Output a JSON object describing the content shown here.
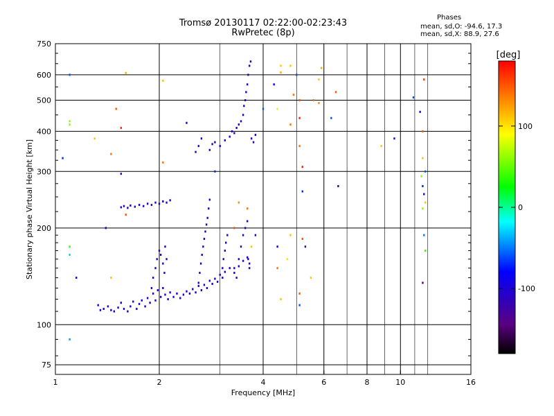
{
  "header": {
    "title_line1": "Tromsø 20130117 02:22:00-02:23:43",
    "title_line2": "RwPretec (8p)",
    "stats_title": "Phases",
    "stats_line1": "mean, sd,O: -94.6, 17.3",
    "stats_line2": "mean, sd,X:  88.9, 27.6"
  },
  "chart_data": {
    "type": "scatter",
    "title": "Tromsø 20130117 02:22:00-02:23:43",
    "subtitle": "RwPretec (8p)",
    "xlabel": "Frequency [MHz]",
    "ylabel": "Stationary phase Virtual Height [km]",
    "x_scale": "log",
    "y_scale": "log",
    "xlim": [
      1,
      16
    ],
    "ylim": [
      70,
      750
    ],
    "x_ticks": [
      1,
      2,
      4,
      6,
      8,
      10,
      16
    ],
    "x_tick_labels": [
      "1",
      "2",
      "4",
      "6",
      "8",
      "10",
      "16"
    ],
    "x_minor_ticks": [
      3,
      5,
      7,
      9,
      11,
      12
    ],
    "y_ticks": [
      75,
      100,
      200,
      300,
      400,
      500,
      600,
      750
    ],
    "y_tick_labels": [
      "75",
      "100",
      "200",
      "300",
      "400",
      "500",
      "600",
      "750"
    ],
    "grid": true,
    "colorbar": {
      "label": "[deg]",
      "range": [
        -180,
        180
      ],
      "ticks": [
        100,
        0,
        -100
      ],
      "tick_labels": [
        "100",
        "0",
        "-100"
      ],
      "colors": [
        "#000000",
        "#5a0080",
        "#0000ff",
        "#00ffff",
        "#00ff00",
        "#ffff00",
        "#ff0000"
      ]
    },
    "series": [
      {
        "trace": "lower_e_f1",
        "points": [
          [
            1.33,
            115
          ],
          [
            1.35,
            111
          ],
          [
            1.38,
            112
          ],
          [
            1.42,
            114
          ],
          [
            1.45,
            111
          ],
          [
            1.48,
            110
          ],
          [
            1.52,
            113
          ],
          [
            1.55,
            117
          ],
          [
            1.58,
            112
          ],
          [
            1.62,
            110
          ],
          [
            1.65,
            114
          ],
          [
            1.68,
            118
          ],
          [
            1.72,
            112
          ],
          [
            1.75,
            116
          ],
          [
            1.78,
            119
          ],
          [
            1.82,
            114
          ],
          [
            1.85,
            121
          ],
          [
            1.88,
            117
          ],
          [
            1.92,
            125
          ],
          [
            1.95,
            119
          ],
          [
            1.98,
            128
          ],
          [
            2.02,
            122
          ],
          [
            2.05,
            130
          ],
          [
            2.08,
            124
          ],
          [
            2.12,
            120
          ],
          [
            2.15,
            126
          ],
          [
            2.2,
            122
          ],
          [
            2.25,
            125
          ],
          [
            2.3,
            121
          ],
          [
            2.35,
            124
          ],
          [
            2.4,
            127
          ],
          [
            2.45,
            125
          ],
          [
            2.5,
            129
          ],
          [
            2.55,
            126
          ],
          [
            2.6,
            132
          ],
          [
            2.65,
            128
          ],
          [
            2.7,
            133
          ],
          [
            2.75,
            130
          ],
          [
            2.8,
            137
          ],
          [
            2.85,
            134
          ],
          [
            2.9,
            139
          ],
          [
            2.95,
            136
          ],
          [
            3.0,
            143
          ],
          [
            3.05,
            140
          ],
          [
            3.1,
            146
          ],
          [
            3.2,
            150
          ],
          [
            3.3,
            145
          ],
          [
            3.4,
            152
          ],
          [
            3.5,
            158
          ],
          [
            3.6,
            162
          ],
          [
            3.65,
            155
          ]
        ],
        "phase": -100
      },
      {
        "trace": "f1_verticals",
        "points": [
          [
            1.9,
            130
          ],
          [
            1.92,
            140
          ],
          [
            1.95,
            150
          ],
          [
            1.97,
            160
          ],
          [
            2.0,
            170
          ],
          [
            2.02,
            165
          ],
          [
            2.05,
            155
          ],
          [
            2.07,
            145
          ],
          [
            2.08,
            175
          ],
          [
            2.1,
            160
          ],
          [
            2.6,
            135
          ],
          [
            2.62,
            145
          ],
          [
            2.64,
            155
          ],
          [
            2.66,
            165
          ],
          [
            2.68,
            175
          ],
          [
            2.7,
            185
          ],
          [
            2.72,
            195
          ],
          [
            2.74,
            205
          ],
          [
            2.76,
            215
          ],
          [
            2.78,
            230
          ],
          [
            2.8,
            245
          ],
          [
            3.05,
            150
          ],
          [
            3.07,
            160
          ],
          [
            3.1,
            170
          ],
          [
            3.12,
            180
          ],
          [
            3.15,
            190
          ],
          [
            3.3,
            150
          ],
          [
            3.35,
            140
          ],
          [
            3.4,
            160
          ],
          [
            3.45,
            175
          ],
          [
            3.5,
            190
          ],
          [
            3.55,
            200
          ],
          [
            3.6,
            210
          ],
          [
            3.62,
            160
          ],
          [
            3.65,
            150
          ]
        ],
        "phase": -110
      },
      {
        "trace": "sporadic_layer_230",
        "points": [
          [
            1.55,
            232
          ],
          [
            1.58,
            234
          ],
          [
            1.62,
            231
          ],
          [
            1.65,
            235
          ],
          [
            1.7,
            233
          ],
          [
            1.75,
            236
          ],
          [
            1.8,
            234
          ],
          [
            1.85,
            238
          ],
          [
            1.9,
            236
          ],
          [
            1.95,
            240
          ],
          [
            2.0,
            238
          ],
          [
            2.05,
            242
          ],
          [
            2.1,
            240
          ],
          [
            2.15,
            244
          ]
        ],
        "phase": -100
      },
      {
        "trace": "f2_cusp",
        "points": [
          [
            2.55,
            345
          ],
          [
            2.6,
            360
          ],
          [
            2.65,
            380
          ],
          [
            2.8,
            350
          ],
          [
            2.85,
            365
          ],
          [
            2.9,
            370
          ],
          [
            3.0,
            360
          ],
          [
            3.1,
            375
          ],
          [
            3.2,
            385
          ],
          [
            3.25,
            400
          ],
          [
            3.3,
            395
          ],
          [
            3.35,
            410
          ],
          [
            3.4,
            420
          ],
          [
            3.45,
            430
          ],
          [
            3.5,
            450
          ],
          [
            3.52,
            480
          ],
          [
            3.55,
            500
          ],
          [
            3.57,
            530
          ],
          [
            3.6,
            560
          ],
          [
            3.62,
            600
          ],
          [
            3.65,
            640
          ],
          [
            3.68,
            660
          ],
          [
            3.7,
            380
          ],
          [
            3.75,
            370
          ],
          [
            3.8,
            390
          ]
        ],
        "phase": -105
      },
      {
        "trace": "x_mode_scatter",
        "points": [
          [
            1.1,
            600,
            -60
          ],
          [
            1.1,
            420,
            60
          ],
          [
            1.1,
            430,
            60
          ],
          [
            1.1,
            175,
            40
          ],
          [
            1.1,
            165,
            -30
          ],
          [
            1.15,
            140,
            -100
          ],
          [
            1.05,
            330,
            -70
          ],
          [
            1.1,
            90,
            -40
          ],
          [
            1.3,
            380,
            110
          ],
          [
            1.45,
            340,
            140
          ],
          [
            1.5,
            470,
            150
          ],
          [
            1.55,
            410,
            165
          ],
          [
            1.6,
            608,
            120
          ],
          [
            1.55,
            295,
            -130
          ],
          [
            1.4,
            200,
            -90
          ],
          [
            1.45,
            140,
            110
          ],
          [
            1.6,
            220,
            150
          ],
          [
            2.05,
            575,
            110
          ],
          [
            2.05,
            320,
            140
          ],
          [
            2.4,
            425,
            -110
          ],
          [
            2.9,
            300,
            -70
          ],
          [
            4.0,
            470,
            -60
          ],
          [
            4.4,
            470,
            80
          ],
          [
            4.5,
            640,
            110
          ],
          [
            4.5,
            610,
            120
          ],
          [
            4.3,
            560,
            -80
          ],
          [
            4.8,
            640,
            110
          ],
          [
            4.8,
            420,
            140
          ],
          [
            4.9,
            520,
            140
          ],
          [
            5.0,
            600,
            -60
          ],
          [
            5.1,
            500,
            150
          ],
          [
            5.1,
            440,
            170
          ],
          [
            5.1,
            360,
            140
          ],
          [
            5.2,
            310,
            170
          ],
          [
            5.2,
            260,
            -70
          ],
          [
            5.2,
            185,
            150
          ],
          [
            5.6,
            500,
            140
          ],
          [
            5.8,
            580,
            110
          ],
          [
            5.8,
            490,
            130
          ],
          [
            5.9,
            630,
            120
          ],
          [
            6.3,
            440,
            -60
          ],
          [
            6.5,
            530,
            150
          ],
          [
            6.6,
            270,
            -110
          ],
          [
            8.8,
            360,
            110
          ],
          [
            9.6,
            380,
            -110
          ],
          [
            10.9,
            510,
            -60
          ],
          [
            11.4,
            460,
            -110
          ],
          [
            11.6,
            400,
            150
          ],
          [
            11.7,
            580,
            160
          ],
          [
            11.6,
            330,
            110
          ],
          [
            11.8,
            300,
            -60
          ],
          [
            11.5,
            290,
            60
          ],
          [
            11.6,
            270,
            -70
          ],
          [
            11.7,
            255,
            -100
          ],
          [
            11.8,
            240,
            110
          ],
          [
            11.6,
            230,
            60
          ],
          [
            11.7,
            190,
            -50
          ],
          [
            11.8,
            170,
            40
          ],
          [
            11.6,
            135,
            -140
          ],
          [
            4.4,
            175,
            -90
          ],
          [
            4.4,
            150,
            140
          ],
          [
            4.7,
            160,
            100
          ],
          [
            4.8,
            190,
            110
          ],
          [
            5.3,
            175,
            -130
          ],
          [
            5.5,
            140,
            110
          ],
          [
            5.1,
            125,
            150
          ],
          [
            5.1,
            115,
            -60
          ],
          [
            4.5,
            120,
            110
          ],
          [
            3.8,
            190,
            -110
          ],
          [
            3.7,
            175,
            110
          ],
          [
            3.3,
            200,
            150
          ],
          [
            3.4,
            240,
            130
          ],
          [
            3.6,
            230,
            140
          ]
        ]
      }
    ]
  }
}
